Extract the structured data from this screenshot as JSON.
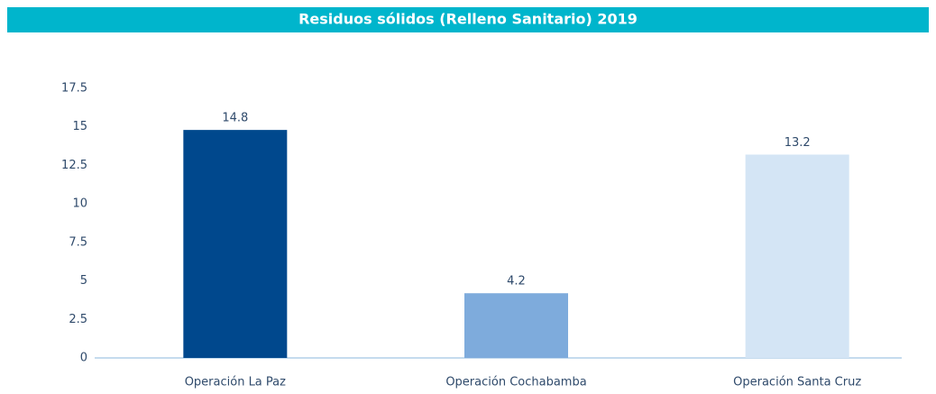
{
  "chart_data": {
    "type": "bar",
    "title": "Residuos sólidos (Relleno Sanitario) 2019",
    "categories": [
      "Operación La Paz",
      "Operación Cochabamba",
      "Operación Santa Cruz"
    ],
    "values": [
      14.8,
      4.2,
      13.2
    ],
    "colors": [
      "#00488d",
      "#7eabdc",
      "#d4e5f5"
    ],
    "ylim": [
      0,
      17.5
    ],
    "yticks": [
      0,
      2.5,
      5,
      7.5,
      10,
      12.5,
      15,
      17.5
    ],
    "grid": false
  }
}
